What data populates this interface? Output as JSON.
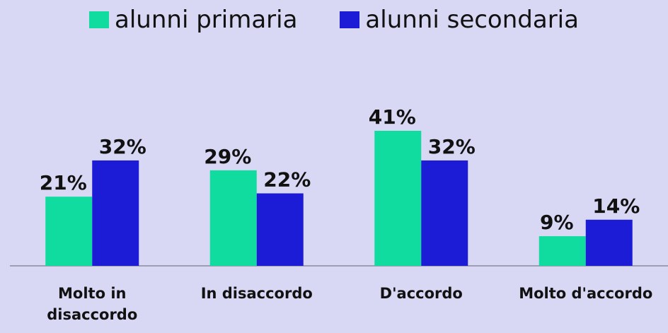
{
  "chart_data": {
    "type": "bar",
    "categories": [
      "Molto in disaccordo",
      "In disaccordo",
      "D'accordo",
      "Molto d'accordo"
    ],
    "series": [
      {
        "name": "alunni primaria",
        "color": "#10dca0",
        "values": [
          21,
          29,
          41,
          9
        ],
        "value_labels": [
          "21%",
          "29%",
          "41%",
          "9%"
        ]
      },
      {
        "name": "alunni secondaria",
        "color": "#1c1cd6",
        "values": [
          32,
          22,
          32,
          14
        ],
        "value_labels": [
          "32%",
          "22%",
          "32%",
          "14%"
        ]
      }
    ],
    "legend": "top"
  }
}
